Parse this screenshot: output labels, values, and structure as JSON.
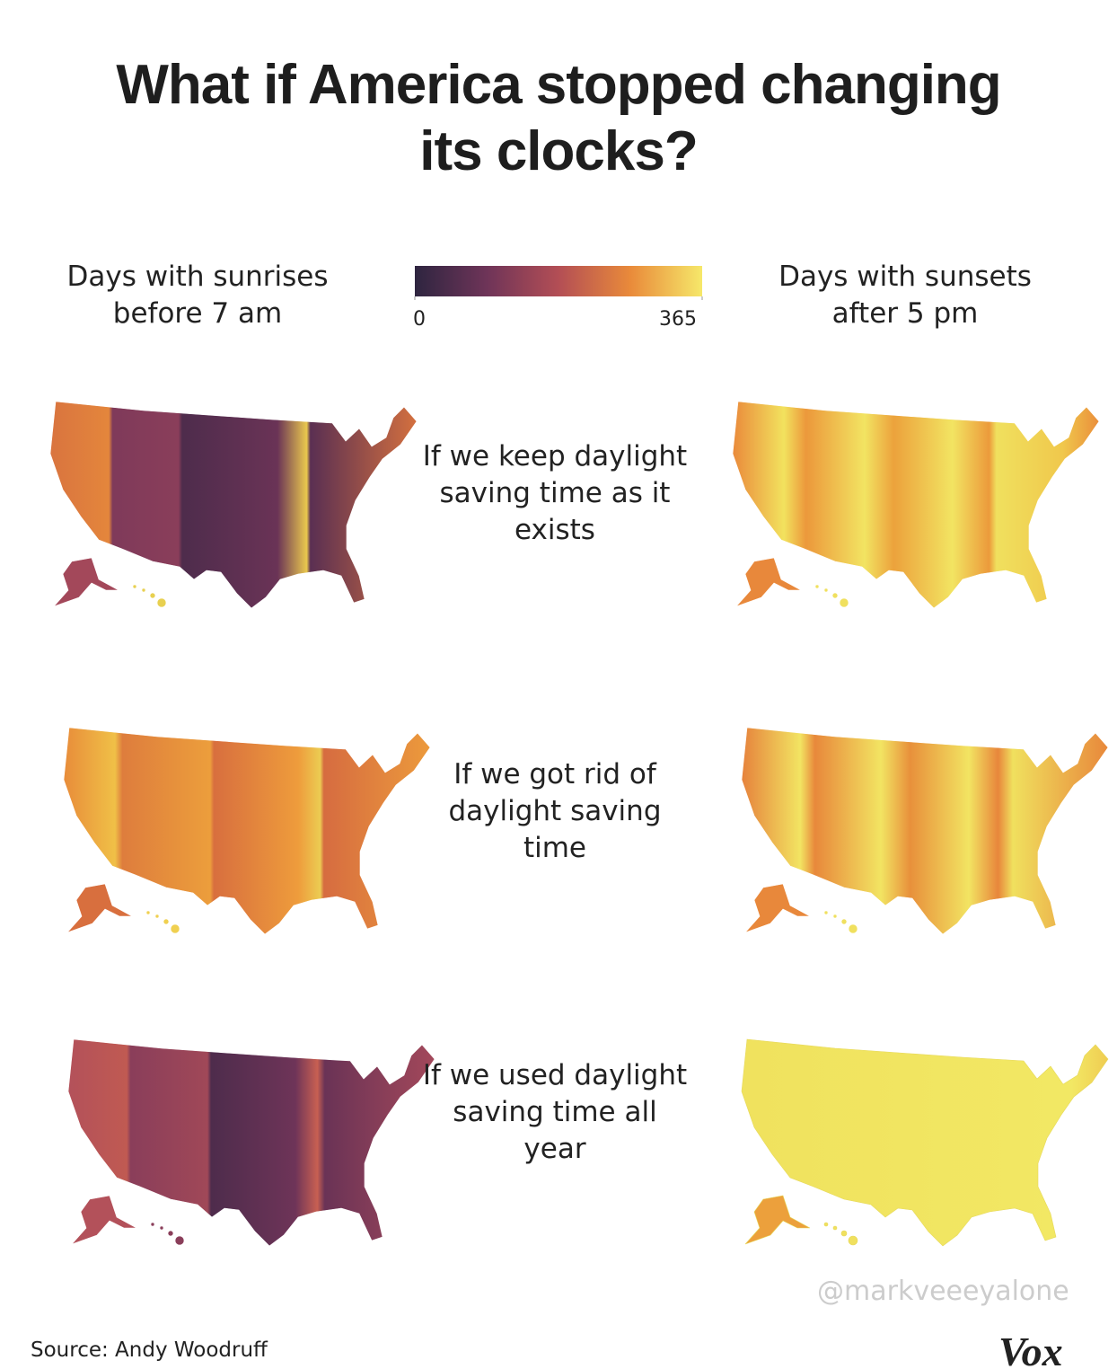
{
  "header": {
    "title": "What if America stopped changing its clocks?"
  },
  "legend": {
    "left_label": "Days with sunrises before 7 am",
    "right_label": "Days with sunsets after 5 pm",
    "min": 0,
    "max": 365,
    "colors": [
      "#2e2540",
      "#6e3458",
      "#b34e55",
      "#e98a3a",
      "#f6e86a"
    ]
  },
  "rows": [
    {
      "label": "If we keep daylight saving time as it exists"
    },
    {
      "label": "If we got rid of daylight saving time"
    },
    {
      "label": "If we used daylight saving time all year"
    }
  ],
  "footer": {
    "source": "Source: Andy Woodruff",
    "watermark": "@markveeeyalone",
    "logo": "Vox"
  }
}
